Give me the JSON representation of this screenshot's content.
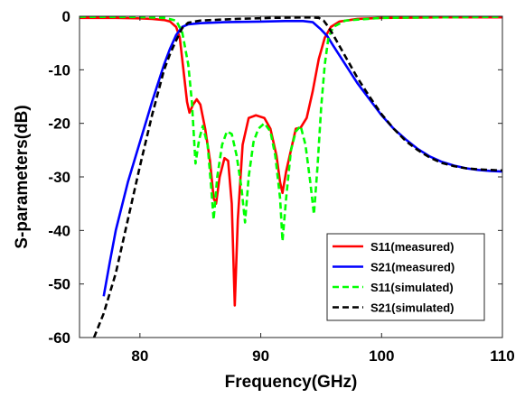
{
  "chart_data": {
    "type": "line",
    "xlabel": "Frequency(GHz)",
    "ylabel": "S-parameters(dB)",
    "xlim": [
      75,
      110
    ],
    "ylim": [
      -60,
      0
    ],
    "xticks": [
      80,
      90,
      100,
      110
    ],
    "yticks": [
      0,
      -10,
      -20,
      -30,
      -40,
      -50,
      -60
    ],
    "xtick_labels": [
      "80",
      "90",
      "100",
      "110"
    ],
    "ytick_labels": [
      "0",
      "-10",
      "-20",
      "-30",
      "-40",
      "-50",
      "-60"
    ],
    "grid": false,
    "legend_position": "bottom-right",
    "series": [
      {
        "name": "S11(measured)",
        "color": "#ff0000",
        "style": "solid",
        "points": [
          [
            75,
            -0.3
          ],
          [
            78,
            -0.3
          ],
          [
            80,
            -0.4
          ],
          [
            81,
            -0.5
          ],
          [
            82,
            -0.7
          ],
          [
            82.5,
            -1
          ],
          [
            83,
            -2
          ],
          [
            83.3,
            -4
          ],
          [
            83.6,
            -10
          ],
          [
            83.9,
            -16
          ],
          [
            84.1,
            -18
          ],
          [
            84.4,
            -16.5
          ],
          [
            84.7,
            -15.5
          ],
          [
            85,
            -16.5
          ],
          [
            85.4,
            -21
          ],
          [
            85.8,
            -27
          ],
          [
            86.1,
            -34
          ],
          [
            86.3,
            -35
          ],
          [
            86.6,
            -30
          ],
          [
            87,
            -26.5
          ],
          [
            87.3,
            -27
          ],
          [
            87.6,
            -35
          ],
          [
            87.85,
            -54
          ],
          [
            88.1,
            -38
          ],
          [
            88.5,
            -24
          ],
          [
            89,
            -19
          ],
          [
            89.6,
            -18.5
          ],
          [
            90.3,
            -19
          ],
          [
            90.8,
            -21
          ],
          [
            91.3,
            -26
          ],
          [
            91.6,
            -31
          ],
          [
            91.8,
            -33
          ],
          [
            92.1,
            -29
          ],
          [
            92.5,
            -25
          ],
          [
            92.9,
            -21
          ],
          [
            93.3,
            -20.8
          ],
          [
            93.8,
            -19
          ],
          [
            94.3,
            -14
          ],
          [
            94.8,
            -8
          ],
          [
            95.3,
            -4
          ],
          [
            95.8,
            -2
          ],
          [
            96.5,
            -1
          ],
          [
            98,
            -0.5
          ],
          [
            100,
            -0.3
          ],
          [
            105,
            -0.2
          ],
          [
            110,
            -0.2
          ]
        ]
      },
      {
        "name": "S21(measured)",
        "color": "#0000ff",
        "style": "solid",
        "points": [
          [
            77,
            -52.3
          ],
          [
            77.5,
            -46
          ],
          [
            78,
            -40
          ],
          [
            79,
            -31
          ],
          [
            80,
            -23.5
          ],
          [
            81,
            -16
          ],
          [
            82,
            -9
          ],
          [
            82.5,
            -6
          ],
          [
            83,
            -3.5
          ],
          [
            83.5,
            -2
          ],
          [
            84,
            -1.5
          ],
          [
            85,
            -1.3
          ],
          [
            87,
            -1.1
          ],
          [
            90,
            -1
          ],
          [
            92,
            -0.9
          ],
          [
            93.5,
            -0.9
          ],
          [
            94.3,
            -1.1
          ],
          [
            95,
            -2.5
          ],
          [
            95.5,
            -3.7
          ],
          [
            96,
            -5.5
          ],
          [
            97,
            -9
          ],
          [
            98,
            -12.5
          ],
          [
            99,
            -15.5
          ],
          [
            100,
            -18.5
          ],
          [
            101,
            -21
          ],
          [
            102,
            -23
          ],
          [
            103,
            -24.8
          ],
          [
            104,
            -26.2
          ],
          [
            105,
            -27.2
          ],
          [
            106,
            -27.9
          ],
          [
            107,
            -28.4
          ],
          [
            108,
            -28.7
          ],
          [
            109,
            -28.9
          ],
          [
            110,
            -29
          ]
        ]
      },
      {
        "name": "S11(simulated)",
        "color": "#00ff00",
        "style": "dashed",
        "points": [
          [
            75,
            -0.1
          ],
          [
            80,
            -0.15
          ],
          [
            82,
            -0.3
          ],
          [
            83,
            -0.8
          ],
          [
            83.5,
            -3
          ],
          [
            84,
            -9
          ],
          [
            84.3,
            -16
          ],
          [
            84.6,
            -27.5
          ],
          [
            84.9,
            -23
          ],
          [
            85.2,
            -20.5
          ],
          [
            85.6,
            -24
          ],
          [
            85.9,
            -32
          ],
          [
            86.1,
            -38
          ],
          [
            86.4,
            -30
          ],
          [
            86.8,
            -24
          ],
          [
            87.2,
            -21.5
          ],
          [
            87.6,
            -22
          ],
          [
            88,
            -26
          ],
          [
            88.4,
            -32
          ],
          [
            88.7,
            -38.5
          ],
          [
            89,
            -30
          ],
          [
            89.4,
            -23.5
          ],
          [
            89.8,
            -21
          ],
          [
            90.3,
            -20
          ],
          [
            90.8,
            -21.5
          ],
          [
            91.2,
            -26
          ],
          [
            91.6,
            -34
          ],
          [
            91.8,
            -42
          ],
          [
            92.1,
            -34
          ],
          [
            92.5,
            -25
          ],
          [
            92.9,
            -21.5
          ],
          [
            93.3,
            -20.5
          ],
          [
            93.7,
            -24
          ],
          [
            94.1,
            -31
          ],
          [
            94.4,
            -37
          ],
          [
            94.7,
            -28
          ],
          [
            95,
            -17
          ],
          [
            95.3,
            -9
          ],
          [
            95.6,
            -4
          ],
          [
            96,
            -2
          ],
          [
            97,
            -0.8
          ],
          [
            100,
            -0.3
          ],
          [
            110,
            -0.1
          ]
        ]
      },
      {
        "name": "S21(simulated)",
        "color": "#000000",
        "style": "dashed",
        "points": [
          [
            76.2,
            -60
          ],
          [
            77,
            -55.5
          ],
          [
            78,
            -48
          ],
          [
            79,
            -38
          ],
          [
            80,
            -28
          ],
          [
            81,
            -18.5
          ],
          [
            82,
            -10
          ],
          [
            82.5,
            -7
          ],
          [
            83,
            -4.5
          ],
          [
            83.5,
            -2.2
          ],
          [
            84,
            -1.2
          ],
          [
            85,
            -0.8
          ],
          [
            88,
            -0.5
          ],
          [
            91,
            -0.3
          ],
          [
            94,
            -0.2
          ],
          [
            94.8,
            -0.3
          ],
          [
            95.2,
            -0.8
          ],
          [
            95.6,
            -2
          ],
          [
            96,
            -3.5
          ],
          [
            96.5,
            -5.5
          ],
          [
            97,
            -7.5
          ],
          [
            98,
            -11.5
          ],
          [
            99,
            -15
          ],
          [
            100,
            -18.3
          ],
          [
            101,
            -21
          ],
          [
            102,
            -23.3
          ],
          [
            103,
            -25
          ],
          [
            104,
            -26.4
          ],
          [
            105,
            -27.4
          ],
          [
            106,
            -28
          ],
          [
            107,
            -28.4
          ],
          [
            108,
            -28.6
          ],
          [
            109,
            -28.7
          ],
          [
            110,
            -28.8
          ]
        ]
      }
    ]
  }
}
